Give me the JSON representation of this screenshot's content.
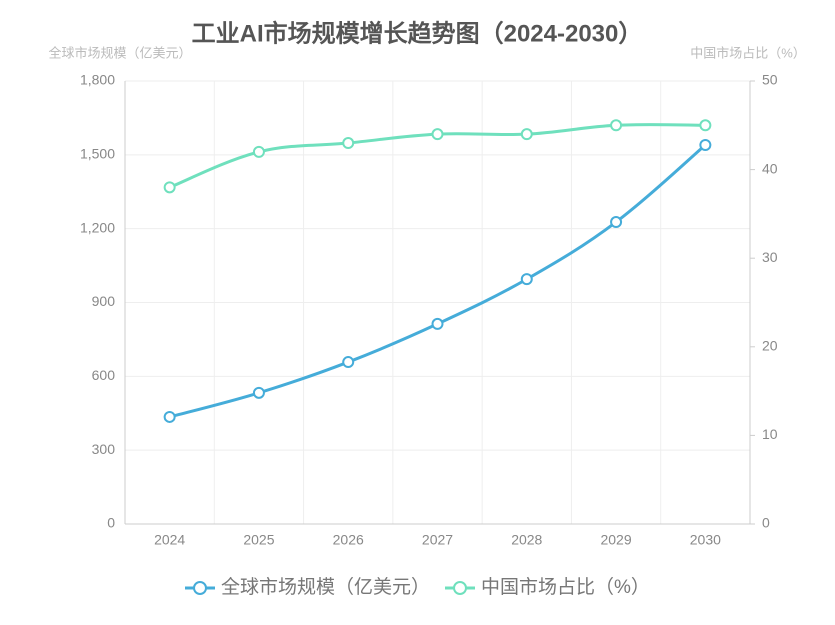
{
  "chart_data": {
    "type": "line",
    "title": "工业AI市场规模增长趋势图（2024-2030）",
    "y_label": "全球市场规模（亿美元）",
    "y2_label": "中国市场占比（%）",
    "categories": [
      "2024",
      "2025",
      "2026",
      "2027",
      "2028",
      "2029",
      "2030"
    ],
    "series": [
      {
        "name": "全球市场规模（亿美元）",
        "color": "#45acd9",
        "values": [
          435,
          533,
          658,
          813,
          995,
          1227,
          1540
        ]
      },
      {
        "name": "中国市场占比（%）",
        "color": "#6fe0bd",
        "axis": "y2",
        "values": [
          38,
          42,
          43,
          44,
          44,
          45,
          45
        ]
      }
    ],
    "ylim": [
      0,
      1800
    ],
    "yticks": [
      0,
      300,
      600,
      900,
      {
        "value": 1200,
        "label": "1,200"
      },
      {
        "value": 1500,
        "label": "1,500"
      },
      {
        "value": 1800,
        "label": "1,800"
      }
    ],
    "y2lim": [
      0,
      50
    ],
    "y2ticks": [
      0,
      10,
      20,
      30,
      40,
      50
    ],
    "grid": true,
    "legend": "bottom"
  }
}
